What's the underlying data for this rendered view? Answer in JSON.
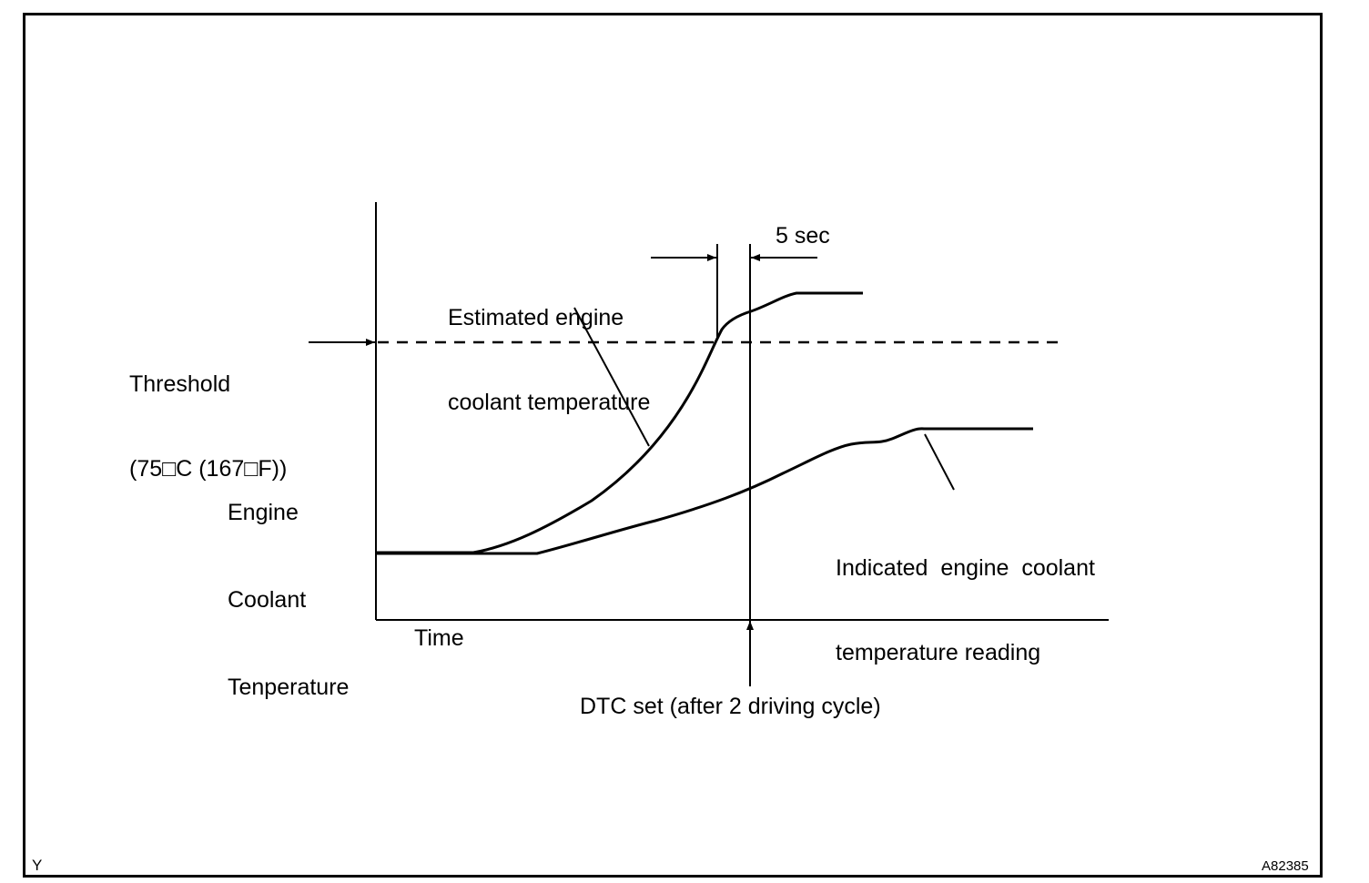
{
  "threshold_label": {
    "line1": "Threshold",
    "line2": "(75□C (167□F))"
  },
  "y_axis_label": {
    "line1": "Engine",
    "line2": "Coolant",
    "line3": "Tenperature"
  },
  "x_axis_label": "Time",
  "estimated_label": {
    "line1": "Estimated engine",
    "line2": "coolant temperature"
  },
  "delay_label": "5 sec",
  "indicated_label": {
    "line1": "Indicated  engine  coolant",
    "line2": "temperature reading"
  },
  "dtc_label": "DTC set (after 2 driving cycle)",
  "corner_code_left": "Y",
  "corner_code_right": "A82385"
}
